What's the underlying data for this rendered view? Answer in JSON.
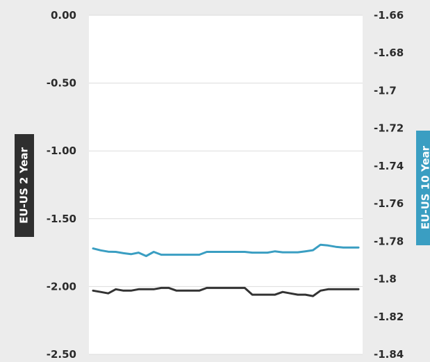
{
  "chart_data": {
    "type": "line",
    "title": "",
    "x": [
      1,
      2,
      3,
      4,
      5,
      6,
      7,
      8,
      9,
      10,
      11,
      12,
      13,
      14,
      15,
      16,
      17,
      18,
      19,
      20,
      21,
      22,
      23,
      24,
      25,
      26,
      27,
      28,
      29,
      30,
      31,
      32,
      33,
      34,
      35,
      36
    ],
    "y_left": {
      "label": "EU-US 2 Year",
      "ticks": [
        "0.00",
        "-0.50",
        "-1.00",
        "-1.50",
        "-2.00",
        "-2.50"
      ],
      "ylim": [
        -2.5,
        0.0
      ]
    },
    "y_right": {
      "label": "EU-US 10 Year",
      "ticks": [
        "-1.66",
        "-1.68",
        "-1.7",
        "-1.72",
        "-1.74",
        "-1.76",
        "-1.78",
        "-1.8",
        "-1.82",
        "-1.84"
      ],
      "ylim": [
        -1.84,
        -1.66
      ]
    },
    "series": [
      {
        "axis": "left",
        "color": "#333333",
        "values": [
          -2.03,
          -2.04,
          -2.05,
          -2.02,
          -2.03,
          -2.03,
          -2.02,
          -2.02,
          -2.02,
          -2.01,
          -2.01,
          -2.03,
          -2.03,
          -2.03,
          -2.03,
          -2.01,
          -2.01,
          -2.01,
          -2.01,
          -2.01,
          -2.01,
          -2.06,
          -2.06,
          -2.06,
          -2.06,
          -2.04,
          -2.05,
          -2.06,
          -2.06,
          -2.07,
          -2.03,
          -2.02,
          -2.02,
          -2.02,
          -2.02,
          -2.02
        ]
      },
      {
        "axis": "right",
        "color": "#3a9ec2",
        "values": [
          -1.7838,
          -1.7848,
          -1.7855,
          -1.7856,
          -1.7863,
          -1.7868,
          -1.786,
          -1.7878,
          -1.7856,
          -1.7871,
          -1.7871,
          -1.7871,
          -1.7871,
          -1.7871,
          -1.7871,
          -1.7856,
          -1.7856,
          -1.7856,
          -1.7856,
          -1.7856,
          -1.7856,
          -1.786,
          -1.786,
          -1.786,
          -1.7853,
          -1.7858,
          -1.7858,
          -1.7858,
          -1.7853,
          -1.7847,
          -1.7818,
          -1.7822,
          -1.7829,
          -1.7833,
          -1.7833,
          -1.7833
        ]
      }
    ],
    "grid": true,
    "legend": "none"
  }
}
